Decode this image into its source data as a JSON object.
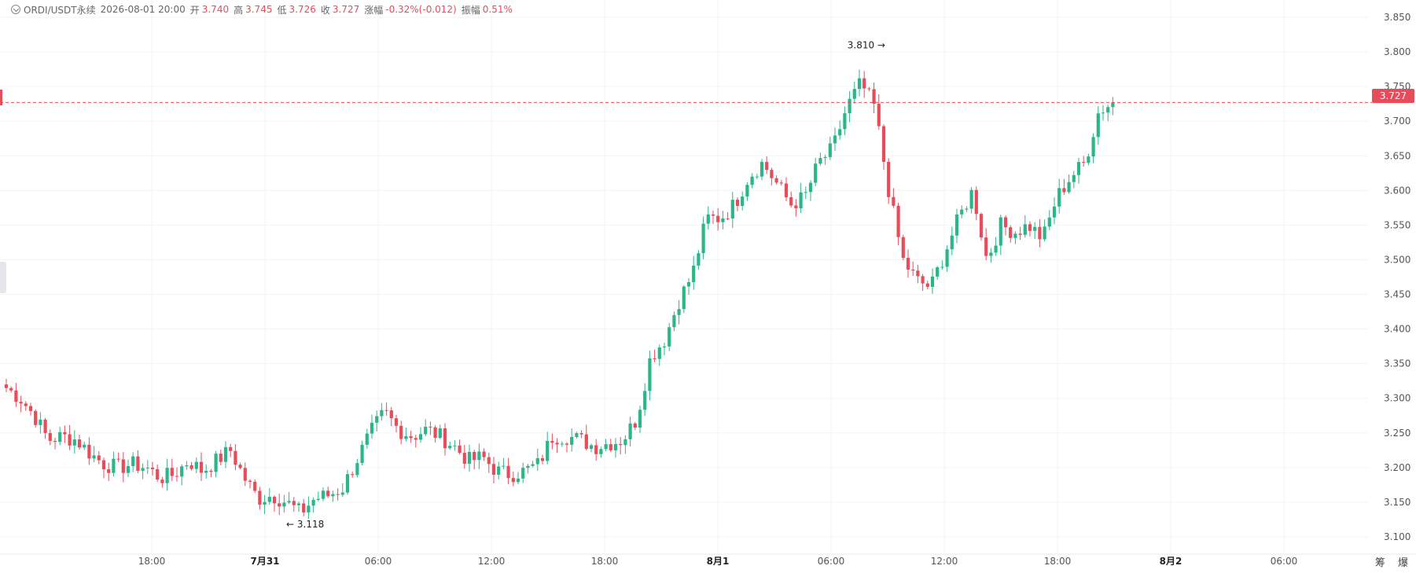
{
  "header": {
    "symbol": "ORDI/USDT永续",
    "datetime": "2026-08-01 20:00",
    "open_label": "开",
    "open": "3.740",
    "high_label": "高",
    "high": "3.745",
    "low_label": "低",
    "low": "3.726",
    "close_label": "收",
    "close": "3.727",
    "change_label": "涨幅",
    "change": "-0.32%(-0.012)",
    "amp_label": "振幅",
    "amp": "0.51%"
  },
  "current_price_label": "3.727",
  "corner_labels": "筹 爆",
  "colors": {
    "up": "#2bb58a",
    "down": "#e74c5a",
    "grid": "#f2f3f5",
    "axis_text": "#555555"
  },
  "chart_data": {
    "type": "candlestick",
    "y_axis": {
      "min": 3.075,
      "max": 3.875,
      "ticks": [
        "3.100",
        "3.150",
        "3.200",
        "3.250",
        "3.300",
        "3.350",
        "3.400",
        "3.450",
        "3.500",
        "3.550",
        "3.600",
        "3.650",
        "3.700",
        "3.750",
        "3.800",
        "3.850"
      ]
    },
    "x_axis": {
      "ticks": [
        "18:00",
        "7月31",
        "06:00",
        "12:00",
        "18:00",
        "8月1",
        "06:00",
        "12:00",
        "18:00",
        "8月2",
        "06:00"
      ],
      "bold": [
        "7月31",
        "8月1",
        "8月2"
      ]
    },
    "current_price": 3.727,
    "annotations": [
      {
        "text": "3.810 →",
        "price": 3.81,
        "side": "left"
      },
      {
        "text": "← 3.118",
        "price": 3.118,
        "side": "right"
      }
    ],
    "close_anchors": [
      3.315,
      3.3,
      3.275,
      3.24,
      3.245,
      3.24,
      3.22,
      3.205,
      3.2,
      3.205,
      3.2,
      3.185,
      3.19,
      3.21,
      3.195,
      3.21,
      3.225,
      3.185,
      3.155,
      3.16,
      3.15,
      3.135,
      3.155,
      3.16,
      3.17,
      3.21,
      3.25,
      3.28,
      3.255,
      3.245,
      3.255,
      3.245,
      3.23,
      3.21,
      3.215,
      3.195,
      3.19,
      3.195,
      3.205,
      3.245,
      3.245,
      3.24,
      3.23,
      3.235,
      3.24,
      3.27,
      3.36,
      3.385,
      3.44,
      3.48,
      3.56,
      3.56,
      3.58,
      3.62,
      3.64,
      3.61,
      3.58,
      3.59,
      3.64,
      3.66,
      3.72,
      3.755,
      3.72,
      3.6,
      3.5,
      3.47,
      3.46,
      3.51,
      3.56,
      3.6,
      3.5,
      3.55,
      3.54,
      3.55,
      3.53,
      3.59,
      3.62,
      3.64,
      3.715,
      3.727
    ],
    "candle_count": 228
  }
}
